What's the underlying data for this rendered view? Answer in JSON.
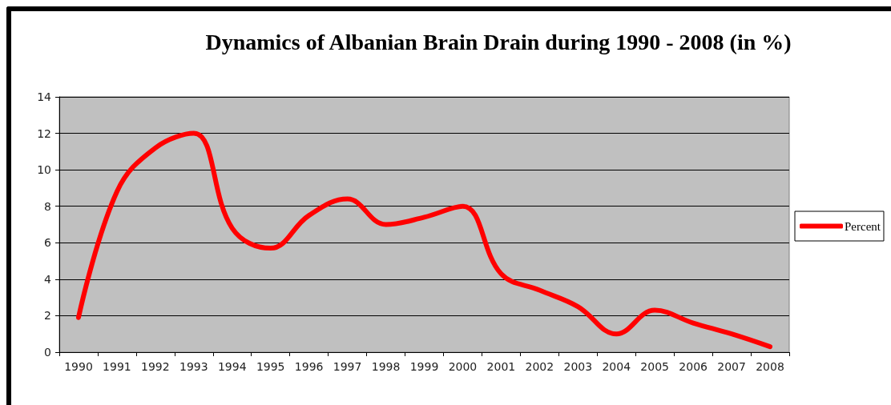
{
  "chart_data": {
    "type": "line",
    "title": "Dynamics of Albanian Brain Drain during 1990 - 2008 (in %)",
    "categories": [
      "1990",
      "1991",
      "1992",
      "1993",
      "1994",
      "1995",
      "1996",
      "1997",
      "1998",
      "1999",
      "2000",
      "2001",
      "2002",
      "2003",
      "2004",
      "2005",
      "2006",
      "2007",
      "2008"
    ],
    "series": [
      {
        "name": "Percent",
        "color": "#ff0000",
        "values": [
          1.9,
          8.8,
          11.2,
          12.0,
          6.8,
          5.7,
          7.5,
          8.4,
          7.0,
          7.4,
          8.0,
          4.3,
          3.4,
          2.5,
          1.0,
          2.3,
          1.6,
          1.0,
          0.3
        ]
      }
    ],
    "ylim": [
      0,
      14
    ],
    "yticks": [
      0,
      2,
      4,
      6,
      8,
      10,
      12,
      14
    ],
    "grid": "y",
    "legend": "right",
    "marker": "none",
    "line_style": "solid"
  }
}
